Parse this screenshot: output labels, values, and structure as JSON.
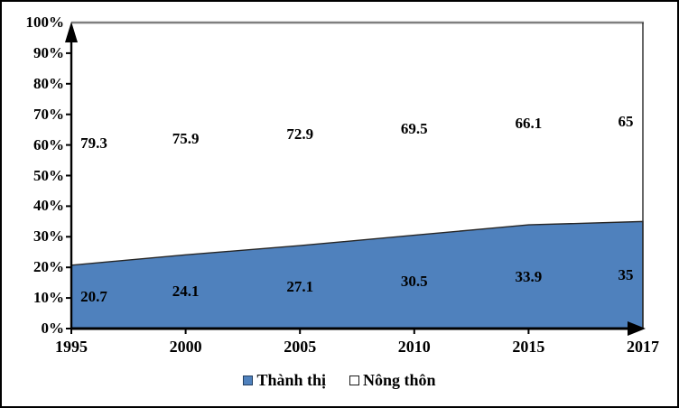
{
  "chart_data": {
    "type": "area",
    "stacked": true,
    "percent_axis": true,
    "title": "",
    "xlabel": "",
    "ylabel": "",
    "categories": [
      "1995",
      "2000",
      "2005",
      "2010",
      "2015",
      "2017"
    ],
    "series": [
      {
        "name": "Thành thị",
        "values": [
          20.7,
          24.1,
          27.1,
          30.5,
          33.9,
          35
        ],
        "labels": [
          "20.7",
          "24.1",
          "27.1",
          "30.5",
          "33.9",
          "35"
        ],
        "fill": "#4F81BD",
        "outline": "#262626"
      },
      {
        "name": "Nông thôn",
        "values": [
          79.3,
          75.9,
          72.9,
          69.5,
          66.1,
          65
        ],
        "labels": [
          "79.3",
          "75.9",
          "72.9",
          "69.5",
          "66.1",
          "65"
        ],
        "fill": "#FFFFFF",
        "outline": "#7F7F7F"
      }
    ],
    "y_tick_labels": [
      "0%",
      "10%",
      "20%",
      "30%",
      "40%",
      "50%",
      "60%",
      "70%",
      "80%",
      "90%",
      "100%"
    ],
    "ylim": [
      0,
      100
    ],
    "grid": false,
    "legend_position": "bottom"
  },
  "legend": {
    "items": [
      {
        "label": "Thành thị",
        "color": "#4F81BD"
      },
      {
        "label": "Nông thôn",
        "color": "#FFFFFF"
      }
    ]
  },
  "colors": {
    "axis": "#000000",
    "top_line": "#7F7F7F",
    "area_outline": "#262626",
    "urban_fill": "#4F81BD",
    "border": "#000000"
  }
}
